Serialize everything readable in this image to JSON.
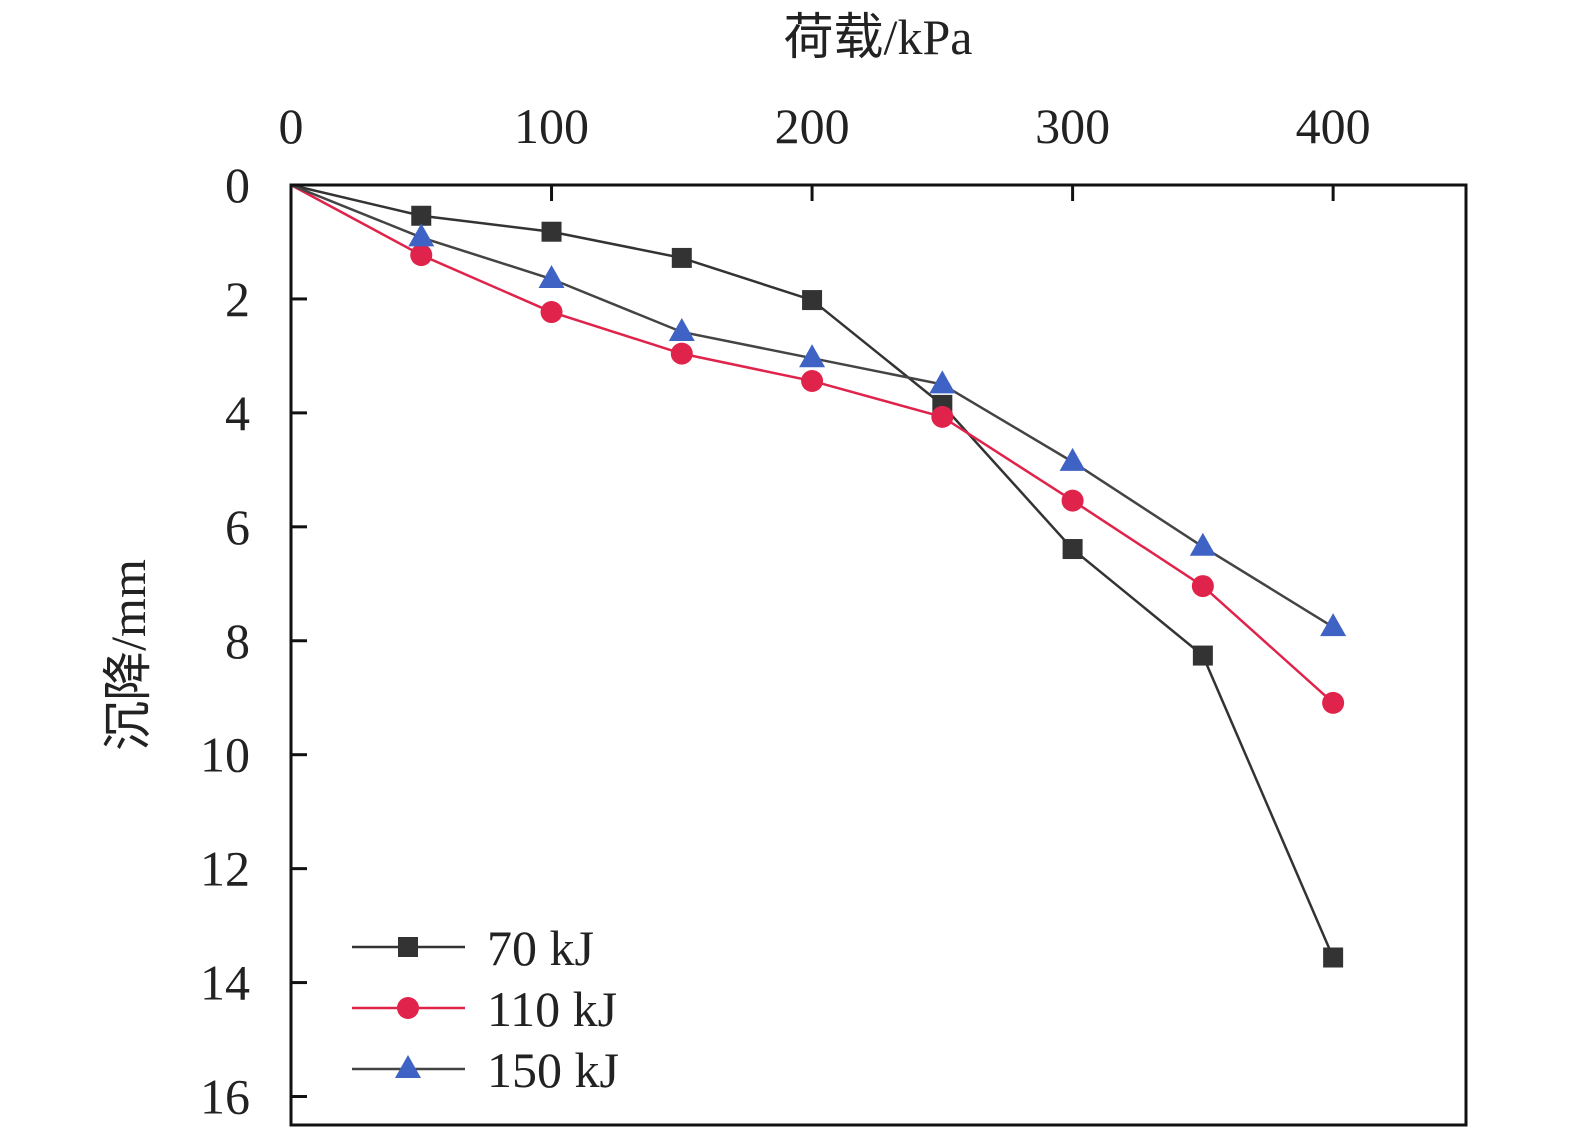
{
  "chart_data": {
    "type": "line",
    "xlabel": "荷载/kPa",
    "ylabel": "沉降/mm",
    "x_axis_position": "top",
    "y_axis_inverted": true,
    "xlim": [
      0,
      451
    ],
    "ylim": [
      0,
      16.5
    ],
    "xticks": [
      0,
      100,
      200,
      300,
      400
    ],
    "yticks": [
      0,
      2,
      4,
      6,
      8,
      10,
      12,
      14,
      16
    ],
    "grid": false,
    "legend_position": "bottom-left",
    "x": [
      0,
      50,
      100,
      150,
      200,
      250,
      300,
      350,
      400
    ],
    "series": [
      {
        "name": "70 kJ",
        "marker": "square",
        "line_color": "#333333",
        "marker_color": "#333333",
        "values": [
          0,
          0.54,
          0.82,
          1.28,
          2.02,
          3.86,
          6.39,
          8.26,
          13.56
        ]
      },
      {
        "name": "110 kJ",
        "marker": "circle",
        "line_color": "#e0234a",
        "marker_color": "#e0234a",
        "values": [
          0,
          1.23,
          2.23,
          2.96,
          3.44,
          4.07,
          5.54,
          7.04,
          9.09
        ]
      },
      {
        "name": "150 kJ",
        "marker": "triangle",
        "line_color": "#444444",
        "marker_color": "#3f63c4",
        "values": [
          0,
          0.92,
          1.65,
          2.58,
          3.04,
          3.5,
          4.86,
          6.35,
          7.76
        ]
      }
    ]
  }
}
